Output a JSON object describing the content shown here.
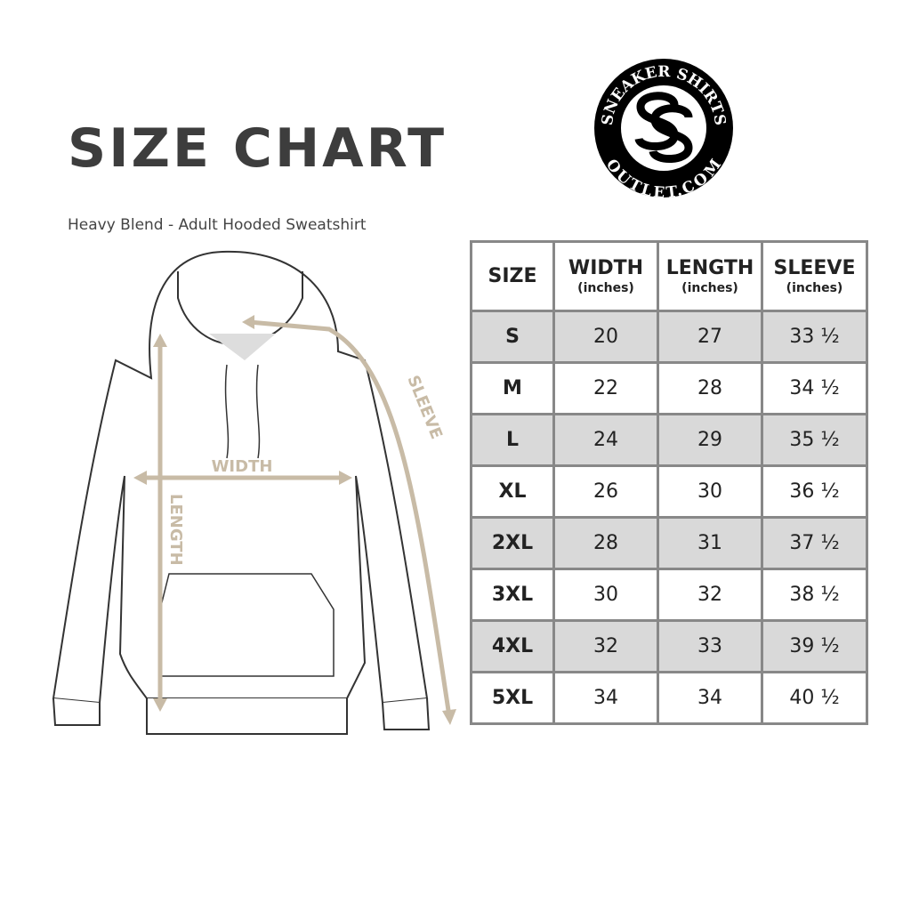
{
  "title": "SIZE CHART",
  "subtitle": "Heavy Blend - Adult Hooded Sweatshirt",
  "logo": {
    "text_top": "SNEAKER SHIRTS",
    "text_bottom": "OUTLET.COM",
    "monogram": "SS"
  },
  "diagram": {
    "width_label": "WIDTH",
    "length_label": "LENGTH",
    "sleeve_label": "SLEEVE",
    "accent_color": "#c8bba6"
  },
  "table": {
    "headers": [
      {
        "label": "SIZE",
        "unit": ""
      },
      {
        "label": "WIDTH",
        "unit": "(inches)"
      },
      {
        "label": "LENGTH",
        "unit": "(inches)"
      },
      {
        "label": "SLEEVE",
        "unit": "(inches)"
      }
    ],
    "rows": [
      [
        "S",
        "20",
        "27",
        "33 ½"
      ],
      [
        "M",
        "22",
        "28",
        "34 ½"
      ],
      [
        "L",
        "24",
        "29",
        "35 ½"
      ],
      [
        "XL",
        "26",
        "30",
        "36 ½"
      ],
      [
        "2XL",
        "28",
        "31",
        "37 ½"
      ],
      [
        "3XL",
        "30",
        "32",
        "38 ½"
      ],
      [
        "4XL",
        "32",
        "33",
        "39 ½"
      ],
      [
        "5XL",
        "34",
        "34",
        "40 ½"
      ]
    ]
  }
}
